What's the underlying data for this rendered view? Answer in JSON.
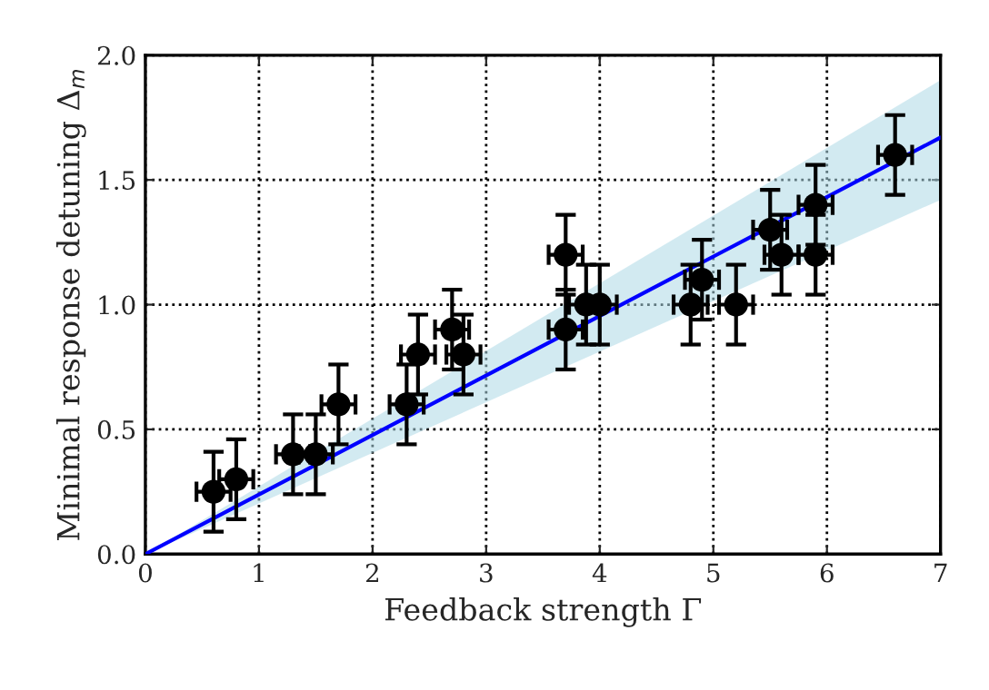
{
  "chart_data": {
    "type": "scatter",
    "xlabel": "Feedback strength Γ",
    "ylabel": "Minimal response detuning Δ$_{m}$",
    "xlim": [
      0,
      7
    ],
    "ylim": [
      0,
      2.0
    ],
    "xticks": [
      0,
      1,
      2,
      3,
      4,
      5,
      6,
      7
    ],
    "yticks": [
      {
        "value": 0,
        "label": "0.0"
      },
      {
        "value": 0.5,
        "label": "0.5"
      },
      {
        "value": 1,
        "label": "1.0"
      },
      {
        "value": 1.5,
        "label": "1.5"
      },
      {
        "value": 2,
        "label": "2.0"
      }
    ],
    "grid": true,
    "series": [
      {
        "type": "line",
        "color": "#0000ff",
        "x": [
          0,
          7
        ],
        "values": [
          0,
          1.67
        ],
        "lower": [
          0,
          1.42
        ],
        "upper": [
          0,
          1.9
        ],
        "line_style": "solid",
        "marker": "none"
      },
      {
        "color": "#000000",
        "marker": "circle",
        "x": [
          0.6,
          0.8,
          1.3,
          1.5,
          1.7,
          2.3,
          2.4,
          2.7,
          2.8,
          3.7,
          3.7,
          3.88,
          4.0,
          4.8,
          4.9,
          5.2,
          5.5,
          5.6,
          5.9,
          5.9,
          6.6
        ],
        "values": [
          0.25,
          0.3,
          0.4,
          0.4,
          0.6,
          0.6,
          0.8,
          0.9,
          0.8,
          1.2,
          0.9,
          1.0,
          1.0,
          1.0,
          1.1,
          1.0,
          1.3,
          1.2,
          1.4,
          1.2,
          1.6
        ],
        "errors": [
          0.16,
          0.16,
          0.16,
          0.16,
          0.16,
          0.16,
          0.16,
          0.16,
          0.16,
          0.16,
          0.16,
          0.16,
          0.16,
          0.16,
          0.16,
          0.16,
          0.16,
          0.16,
          0.16,
          0.16,
          0.16
        ],
        "xerrors": [
          0.15,
          0.15,
          0.15,
          0.15,
          0.15,
          0.15,
          0.15,
          0.15,
          0.15,
          0.15,
          0.15,
          0.15,
          0.15,
          0.15,
          0.15,
          0.15,
          0.15,
          0.15,
          0.15,
          0.15,
          0.15
        ]
      }
    ]
  }
}
